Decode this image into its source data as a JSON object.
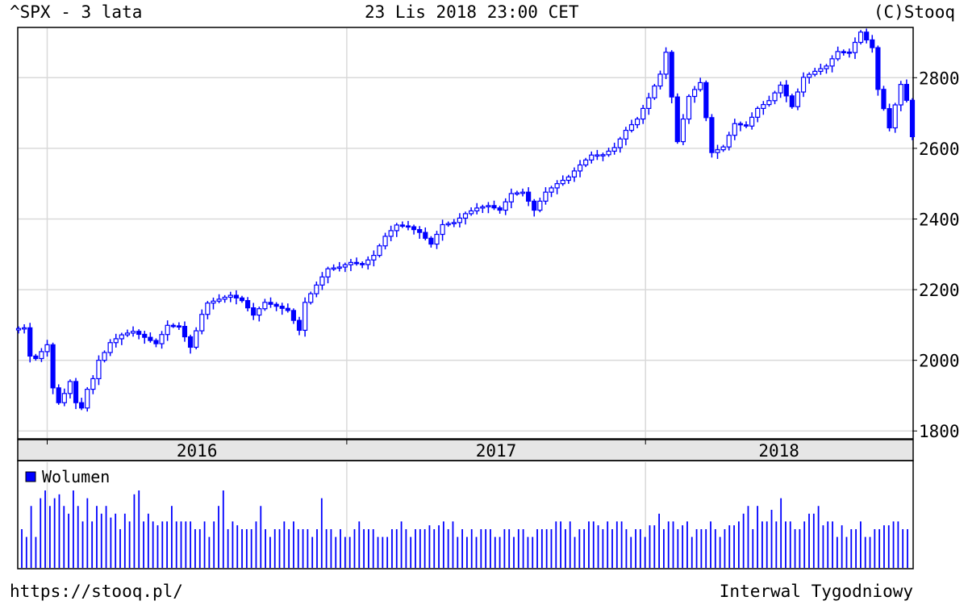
{
  "header": {
    "symbol_title": "^SPX - 3 lata",
    "datetime": "23 Lis 2018 23:00 CET",
    "copyright": "(C)Stooq"
  },
  "footer": {
    "url": "https://stooq.pl/",
    "interval": "Interwal Tygodniowy"
  },
  "colors": {
    "candle": "#0000ff",
    "volume": "#0000ff",
    "grid": "#d9d9d9",
    "frame": "#000000",
    "year_band": "#e6e6e6"
  },
  "chart_data": [
    {
      "type": "candlestick",
      "title": "^SPX - 3 lata",
      "ylim": [
        1780,
        2940
      ],
      "y_ticks": [
        1800,
        2000,
        2200,
        2400,
        2600,
        2800
      ],
      "y_tick_labels": [
        "1800",
        "2000",
        "2200",
        "2400",
        "2600",
        "2800"
      ],
      "grid": true,
      "year_labels": [
        "2016",
        "2017",
        "2018"
      ],
      "x_start": "2015-11-27",
      "x_end": "2018-11-23",
      "year_starts": [
        "2016-01-01",
        "2017-01-01",
        "2018-01-01"
      ],
      "close_series": [
        [
          "2015-11-27",
          2090
        ],
        [
          "2015-12-04",
          2092
        ],
        [
          "2015-12-11",
          2012
        ],
        [
          "2015-12-18",
          2005
        ],
        [
          "2016-01-01",
          2044
        ],
        [
          "2016-01-08",
          1922
        ],
        [
          "2016-01-15",
          1880
        ],
        [
          "2016-01-22",
          1906
        ],
        [
          "2016-01-29",
          1940
        ],
        [
          "2016-02-05",
          1880
        ],
        [
          "2016-02-12",
          1865
        ],
        [
          "2016-02-19",
          1918
        ],
        [
          "2016-02-26",
          1948
        ],
        [
          "2016-03-04",
          2000
        ],
        [
          "2016-03-11",
          2022
        ],
        [
          "2016-03-18",
          2050
        ],
        [
          "2016-04-01",
          2072
        ],
        [
          "2016-04-15",
          2082
        ],
        [
          "2016-04-29",
          2065
        ],
        [
          "2016-05-13",
          2047
        ],
        [
          "2016-05-27",
          2099
        ],
        [
          "2016-06-10",
          2096
        ],
        [
          "2016-06-24",
          2037
        ],
        [
          "2016-07-08",
          2130
        ],
        [
          "2016-07-15",
          2162
        ],
        [
          "2016-07-29",
          2173
        ],
        [
          "2016-08-12",
          2184
        ],
        [
          "2016-08-26",
          2169
        ],
        [
          "2016-09-09",
          2128
        ],
        [
          "2016-09-23",
          2164
        ],
        [
          "2016-10-07",
          2153
        ],
        [
          "2016-10-21",
          2141
        ],
        [
          "2016-11-04",
          2085
        ],
        [
          "2016-11-11",
          2164
        ],
        [
          "2016-11-25",
          2213
        ],
        [
          "2016-12-09",
          2259
        ],
        [
          "2016-12-23",
          2264
        ],
        [
          "2017-01-06",
          2277
        ],
        [
          "2017-01-20",
          2271
        ],
        [
          "2017-02-03",
          2297
        ],
        [
          "2017-02-17",
          2351
        ],
        [
          "2017-03-03",
          2383
        ],
        [
          "2017-03-17",
          2378
        ],
        [
          "2017-03-31",
          2362
        ],
        [
          "2017-04-14",
          2329
        ],
        [
          "2017-04-28",
          2384
        ],
        [
          "2017-05-12",
          2390
        ],
        [
          "2017-05-26",
          2415
        ],
        [
          "2017-06-09",
          2431
        ],
        [
          "2017-06-23",
          2438
        ],
        [
          "2017-07-07",
          2425
        ],
        [
          "2017-07-21",
          2472
        ],
        [
          "2017-08-04",
          2476
        ],
        [
          "2017-08-18",
          2425
        ],
        [
          "2017-09-01",
          2476
        ],
        [
          "2017-09-15",
          2500
        ],
        [
          "2017-09-29",
          2519
        ],
        [
          "2017-10-13",
          2553
        ],
        [
          "2017-10-27",
          2581
        ],
        [
          "2017-11-10",
          2582
        ],
        [
          "2017-11-24",
          2602
        ],
        [
          "2017-12-08",
          2651
        ],
        [
          "2017-12-22",
          2683
        ],
        [
          "2018-01-05",
          2743
        ],
        [
          "2018-01-19",
          2810
        ],
        [
          "2018-01-26",
          2872
        ],
        [
          "2018-02-09",
          2619
        ],
        [
          "2018-02-23",
          2747
        ],
        [
          "2018-03-09",
          2786
        ],
        [
          "2018-03-23",
          2588
        ],
        [
          "2018-04-06",
          2604
        ],
        [
          "2018-04-20",
          2670
        ],
        [
          "2018-05-04",
          2663
        ],
        [
          "2018-05-18",
          2713
        ],
        [
          "2018-06-01",
          2735
        ],
        [
          "2018-06-15",
          2779
        ],
        [
          "2018-06-29",
          2718
        ],
        [
          "2018-07-13",
          2801
        ],
        [
          "2018-07-27",
          2818
        ],
        [
          "2018-08-10",
          2833
        ],
        [
          "2018-08-24",
          2874
        ],
        [
          "2018-09-07",
          2871
        ],
        [
          "2018-09-21",
          2929
        ],
        [
          "2018-10-05",
          2885
        ],
        [
          "2018-10-12",
          2767
        ],
        [
          "2018-10-26",
          2658
        ],
        [
          "2018-11-02",
          2723
        ],
        [
          "2018-11-09",
          2781
        ],
        [
          "2018-11-16",
          2736
        ],
        [
          "2018-11-23",
          2633
        ]
      ]
    },
    {
      "type": "bar",
      "legend": [
        "Wolumen"
      ],
      "legend_position": "top-left",
      "values": [
        50,
        40,
        80,
        40,
        90,
        100,
        80,
        90,
        95,
        80,
        70,
        100,
        80,
        60,
        90,
        60,
        80,
        70,
        80,
        65,
        70,
        50,
        70,
        60,
        95,
        100,
        60,
        70,
        60,
        55,
        60,
        60,
        80,
        60,
        60,
        60,
        60,
        50,
        50,
        60,
        40,
        60,
        80,
        100,
        50,
        60,
        55,
        50,
        50,
        50,
        60,
        80,
        50,
        40,
        50,
        50,
        60,
        50,
        60,
        50,
        50,
        50,
        40,
        50,
        90,
        50,
        50,
        40,
        50,
        40,
        40,
        50,
        60,
        50,
        50,
        50,
        40,
        40,
        40,
        50,
        50,
        60,
        50,
        40,
        50,
        50,
        50,
        55,
        50,
        55,
        60,
        50,
        60,
        40,
        50,
        40,
        50,
        40,
        50,
        50,
        50,
        40,
        40,
        50,
        50,
        40,
        50,
        50,
        40,
        40,
        50,
        50,
        50,
        50,
        60,
        60,
        50,
        60,
        40,
        50,
        50,
        60,
        60,
        55,
        50,
        60,
        50,
        60,
        60,
        50,
        40,
        50,
        50,
        40,
        55,
        55,
        70,
        50,
        60,
        60,
        50,
        55,
        60,
        40,
        50,
        50,
        50,
        60,
        50,
        40,
        50,
        55,
        55,
        60,
        70,
        80,
        50,
        80,
        60,
        60,
        75,
        60,
        90,
        60,
        60,
        50,
        50,
        60,
        70,
        70,
        80,
        55,
        60,
        60,
        40,
        55,
        40,
        50,
        50,
        60,
        40,
        40,
        50,
        50,
        55,
        55,
        60,
        60,
        50,
        50
      ]
    }
  ]
}
